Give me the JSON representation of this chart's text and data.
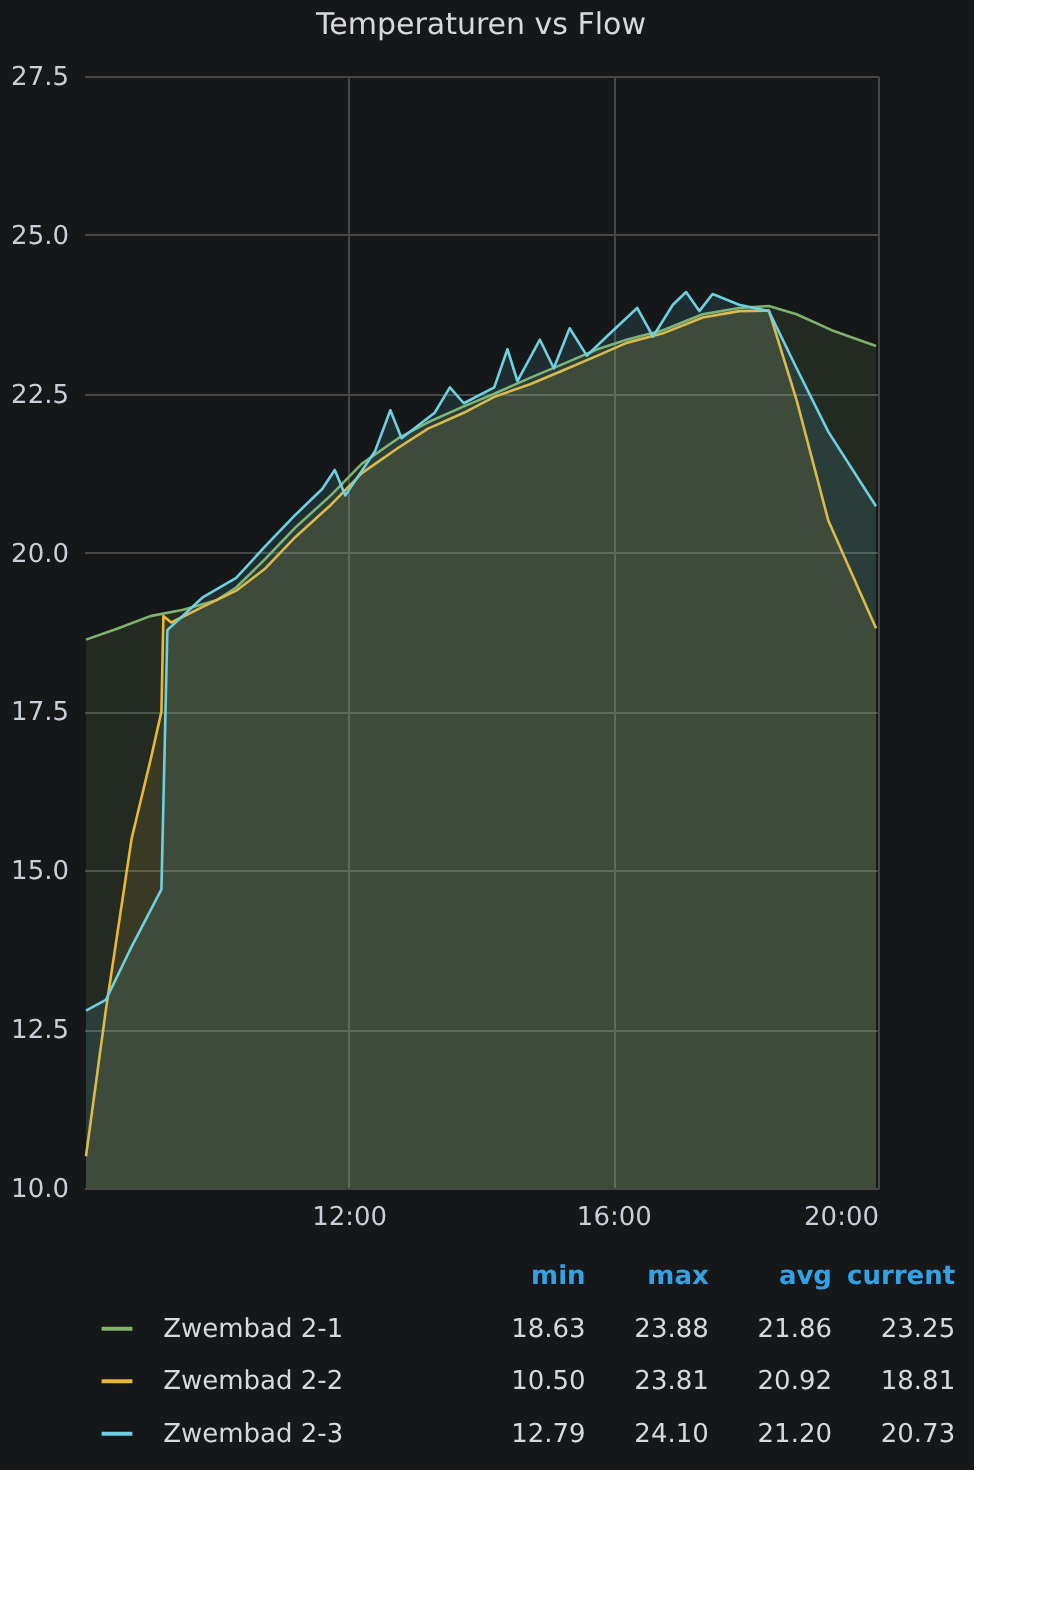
{
  "chart_data": {
    "type": "area",
    "title": "Temperaturen vs Flow",
    "xlim": [
      8,
      20
    ],
    "ylim": [
      10,
      27.5
    ],
    "xticks": [
      {
        "value": 12,
        "label": "12:00"
      },
      {
        "value": 16,
        "label": "16:00"
      },
      {
        "value": 20,
        "label": "20:00"
      }
    ],
    "yticks": [
      {
        "value": 10,
        "label": "10.0"
      },
      {
        "value": 12.5,
        "label": "12.5"
      },
      {
        "value": 15,
        "label": "15.0"
      },
      {
        "value": 17.5,
        "label": "17.5"
      },
      {
        "value": 20,
        "label": "20.0"
      },
      {
        "value": 22.5,
        "label": "22.5"
      },
      {
        "value": 25,
        "label": "25.0"
      },
      {
        "value": 27.5,
        "label": "27.5"
      }
    ],
    "grid": true,
    "legend": "bottom",
    "series": [
      {
        "name": "Zwembad 2-1",
        "color": "#7eb26d",
        "x": [
          8.03,
          8.5,
          9.0,
          9.5,
          10.0,
          10.3,
          10.74,
          11.2,
          11.73,
          12.2,
          12.75,
          13.2,
          13.74,
          14.2,
          14.74,
          15.2,
          15.76,
          16.2,
          16.75,
          17.35,
          17.9,
          18.35,
          18.77,
          19.3,
          19.97
        ],
        "values": [
          18.63,
          18.8,
          19.0,
          19.1,
          19.25,
          19.45,
          19.9,
          20.4,
          20.9,
          21.4,
          21.8,
          22.05,
          22.3,
          22.5,
          22.75,
          22.95,
          23.2,
          23.35,
          23.5,
          23.75,
          23.85,
          23.88,
          23.75,
          23.5,
          23.25
        ]
      },
      {
        "name": "Zwembad 2-2",
        "color": "#eab839",
        "x": [
          8.03,
          8.33,
          8.72,
          9.02,
          9.17,
          9.2,
          9.32,
          9.8,
          10.3,
          10.74,
          11.2,
          11.73,
          12.2,
          12.75,
          13.2,
          13.74,
          14.2,
          14.74,
          15.2,
          15.76,
          16.2,
          16.75,
          17.35,
          17.9,
          18.35,
          18.77,
          19.25,
          19.97
        ],
        "values": [
          10.5,
          12.8,
          15.5,
          16.8,
          17.5,
          19.0,
          18.9,
          19.15,
          19.4,
          19.75,
          20.25,
          20.75,
          21.25,
          21.65,
          21.95,
          22.2,
          22.45,
          22.65,
          22.85,
          23.1,
          23.3,
          23.45,
          23.7,
          23.8,
          23.81,
          22.4,
          20.5,
          18.81
        ]
      },
      {
        "name": "Zwembad 2-3",
        "color": "#6ed0e0",
        "x": [
          8.03,
          8.33,
          8.72,
          9.17,
          9.26,
          9.8,
          10.3,
          10.74,
          11.2,
          11.6,
          11.79,
          11.95,
          12.4,
          12.63,
          12.8,
          13.3,
          13.53,
          13.74,
          14.2,
          14.4,
          14.55,
          14.89,
          15.1,
          15.34,
          15.6,
          15.9,
          16.36,
          16.6,
          16.9,
          17.1,
          17.3,
          17.5,
          17.9,
          18.35,
          18.77,
          19.25,
          19.97
        ],
        "values": [
          12.79,
          12.96,
          13.8,
          14.7,
          18.78,
          19.3,
          19.6,
          20.1,
          20.6,
          21.0,
          21.3,
          20.9,
          21.6,
          22.24,
          21.8,
          22.2,
          22.6,
          22.35,
          22.6,
          23.2,
          22.7,
          23.35,
          22.9,
          23.53,
          23.1,
          23.4,
          23.85,
          23.4,
          23.9,
          24.1,
          23.8,
          24.07,
          23.9,
          23.8,
          22.9,
          21.9,
          20.73
        ]
      }
    ],
    "annotations": [
      "min",
      "max",
      "avg",
      "current",
      "18.63",
      "23.88",
      "21.86",
      "23.25",
      "10.50",
      "23.81",
      "20.92",
      "18.81",
      "12.79",
      "24.10",
      "21.20",
      "20.73"
    ]
  }
}
